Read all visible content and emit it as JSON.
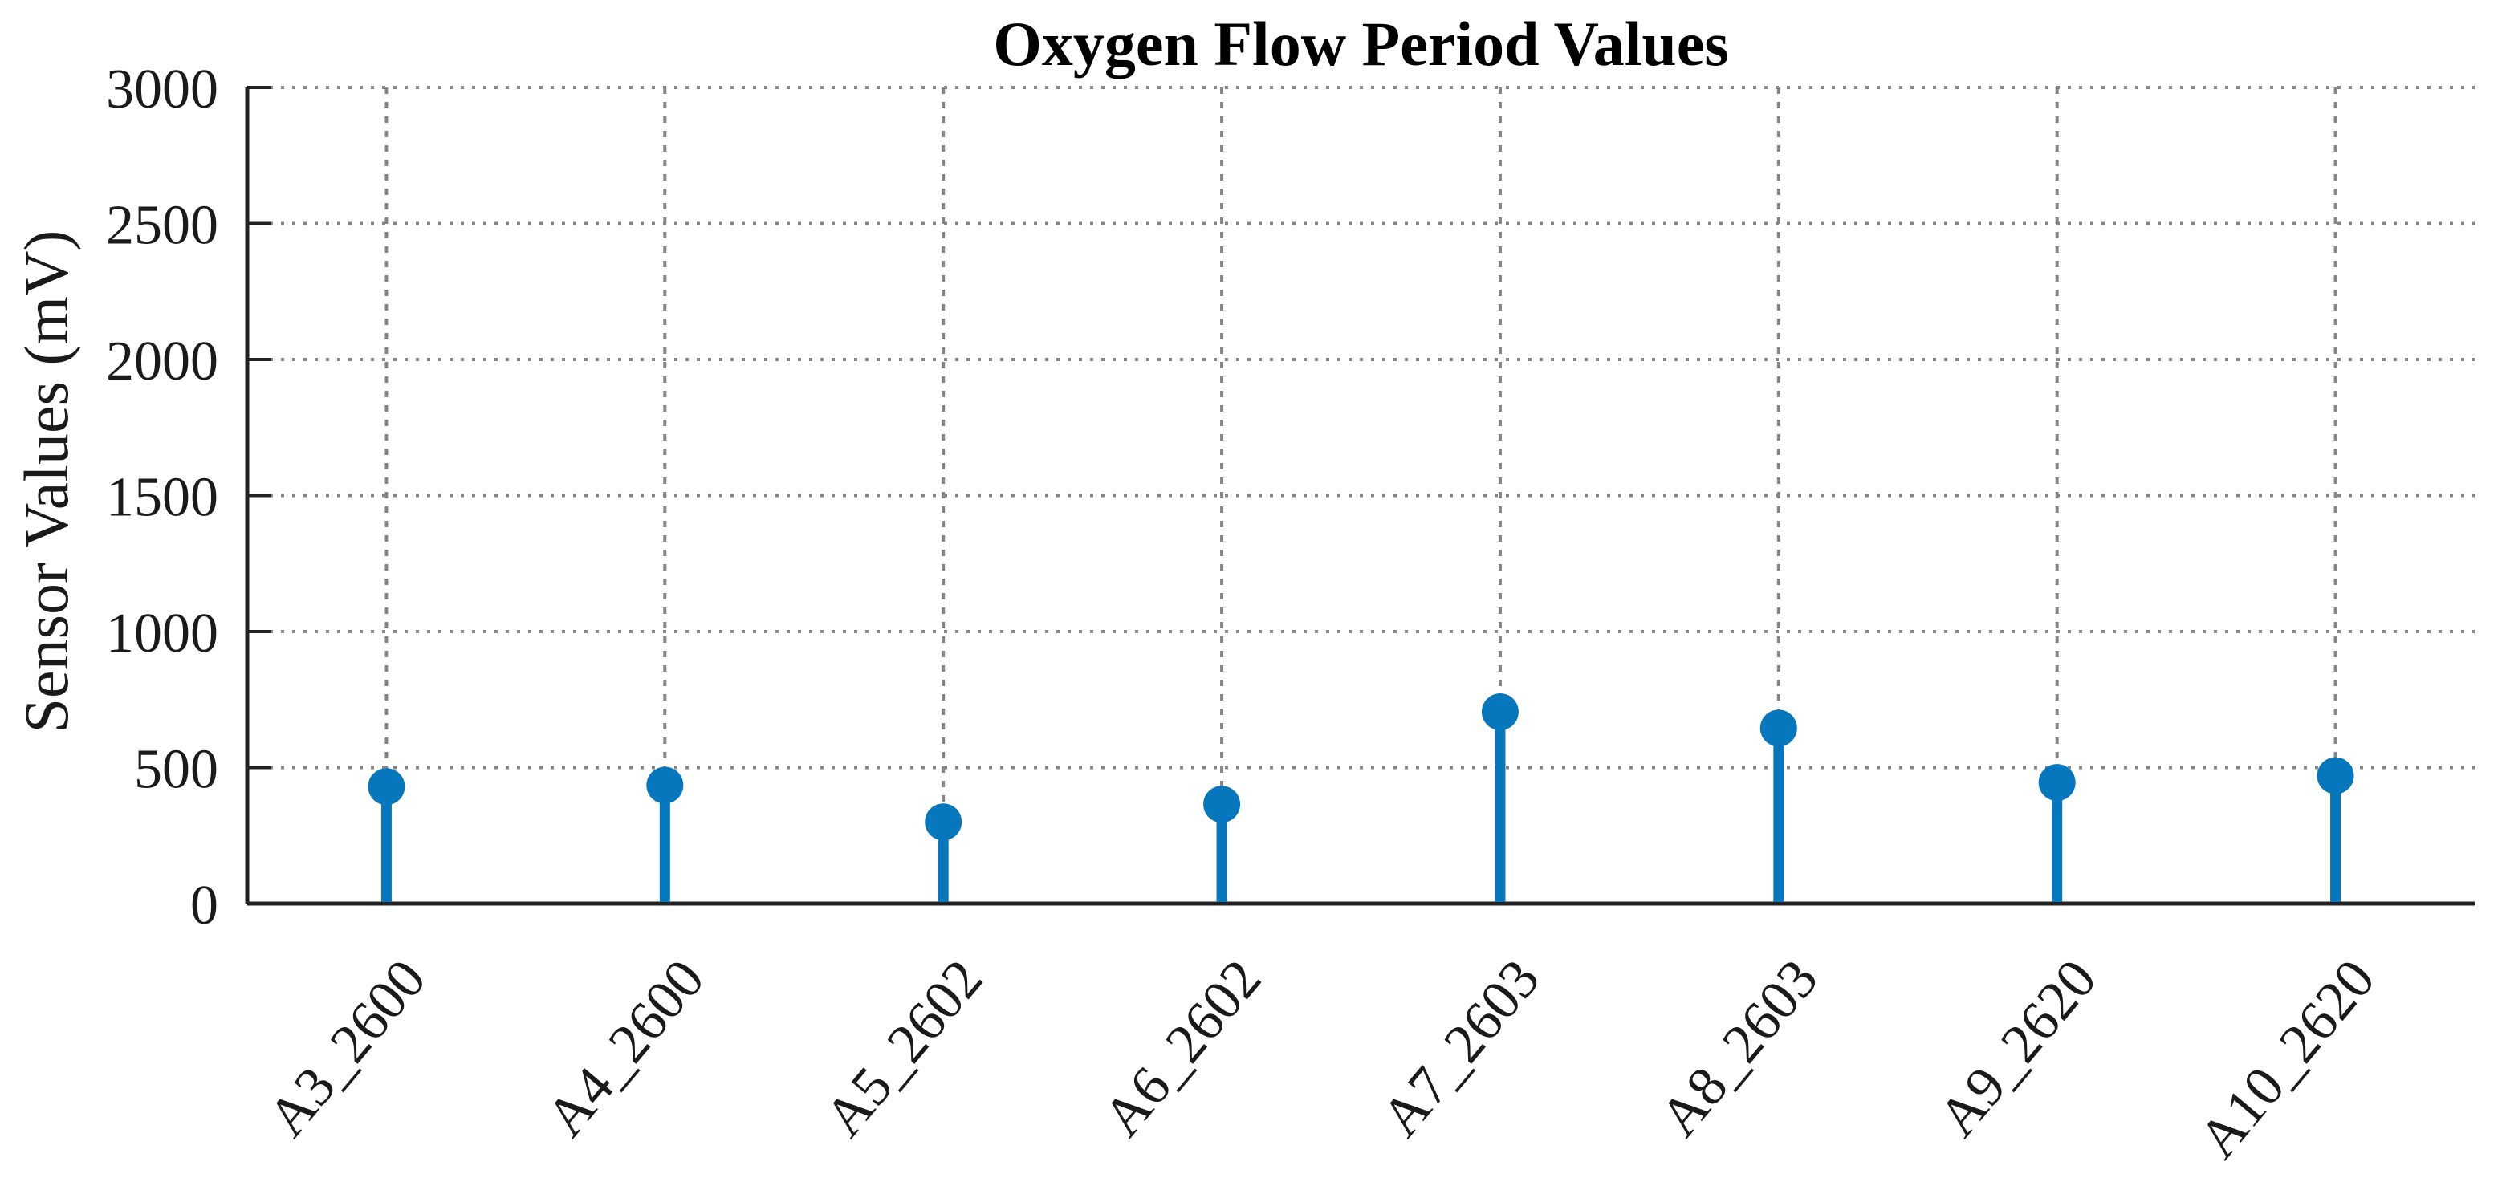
{
  "figure": {
    "title": "Oxygen Flow Period Values"
  },
  "chart_data": {
    "type": "stem",
    "title": "Oxygen Flow Period Values",
    "xlabel": "",
    "ylabel": "Sensor Values (mV)",
    "categories": [
      "A3_2600",
      "A4_2600",
      "A5_2602",
      "A6_2602",
      "A7_2603",
      "A8_2603",
      "A9_2620",
      "A10_2620"
    ],
    "values": [
      430,
      435,
      300,
      365,
      705,
      645,
      445,
      470
    ],
    "ylim": [
      0,
      3000
    ],
    "yticks": [
      0,
      500,
      1000,
      1500,
      2000,
      2500,
      3000
    ],
    "grid": true,
    "grid_style": "dotted",
    "x_tick_rotation": -50,
    "legend": "none",
    "marker": "filled-circle",
    "colors": {
      "stem": "#0777BD",
      "axis": "#222222",
      "grid": "#858585",
      "text": "#1a1a1a",
      "background": "#ffffff"
    }
  }
}
